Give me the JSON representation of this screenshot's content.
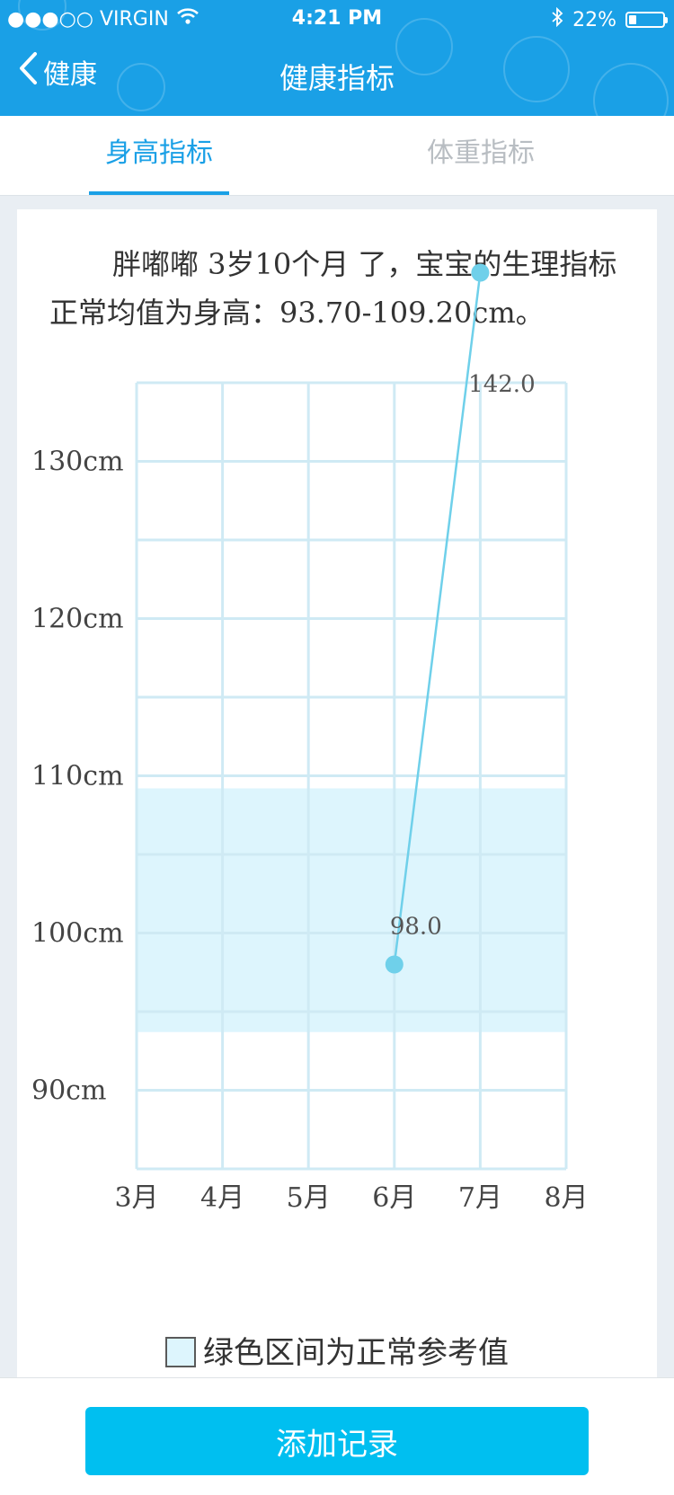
{
  "status_bar": {
    "carrier": "●●●○○ VIRGIN",
    "time": "4:21 PM",
    "battery": "22%",
    "battery_level": 0.22,
    "icons": [
      "wifi-icon",
      "bluetooth-icon",
      "battery-icon"
    ]
  },
  "nav": {
    "back_label": "健康",
    "title": "健康指标"
  },
  "tabs": [
    {
      "label": "身高指标",
      "active": true
    },
    {
      "label": "体重指标",
      "active": false
    }
  ],
  "description": "胖嘟嘟 3岁10个月 了，宝宝的生理指标正常均值为身高：93.70-109.20cm。",
  "chart_data": {
    "type": "line",
    "categories": [
      "3月",
      "4月",
      "5月",
      "6月",
      "7月",
      "8月"
    ],
    "series": [
      {
        "points": [
          {
            "x": "6月",
            "y": 98.0
          },
          {
            "x": "7月",
            "y": 142.0
          }
        ]
      }
    ],
    "point_labels": [
      "98.0",
      "142.0"
    ],
    "y_ticks": [
      90,
      100,
      110,
      120,
      130
    ],
    "y_tick_labels": [
      "90cm",
      "100cm",
      "110cm",
      "120cm",
      "130cm"
    ],
    "ylim": [
      85,
      135
    ],
    "normal_range": [
      93.7,
      109.2
    ],
    "grid": true,
    "colors": {
      "line": "#6fd0ea",
      "band": "#ddf5fd",
      "grid": "#cfeaf4"
    }
  },
  "legend": {
    "label": "绿色区间为正常参考值"
  },
  "bottom": {
    "button_label": "添加记录"
  },
  "colors": {
    "brand": "#1aa0e6",
    "button": "#00bff0"
  }
}
